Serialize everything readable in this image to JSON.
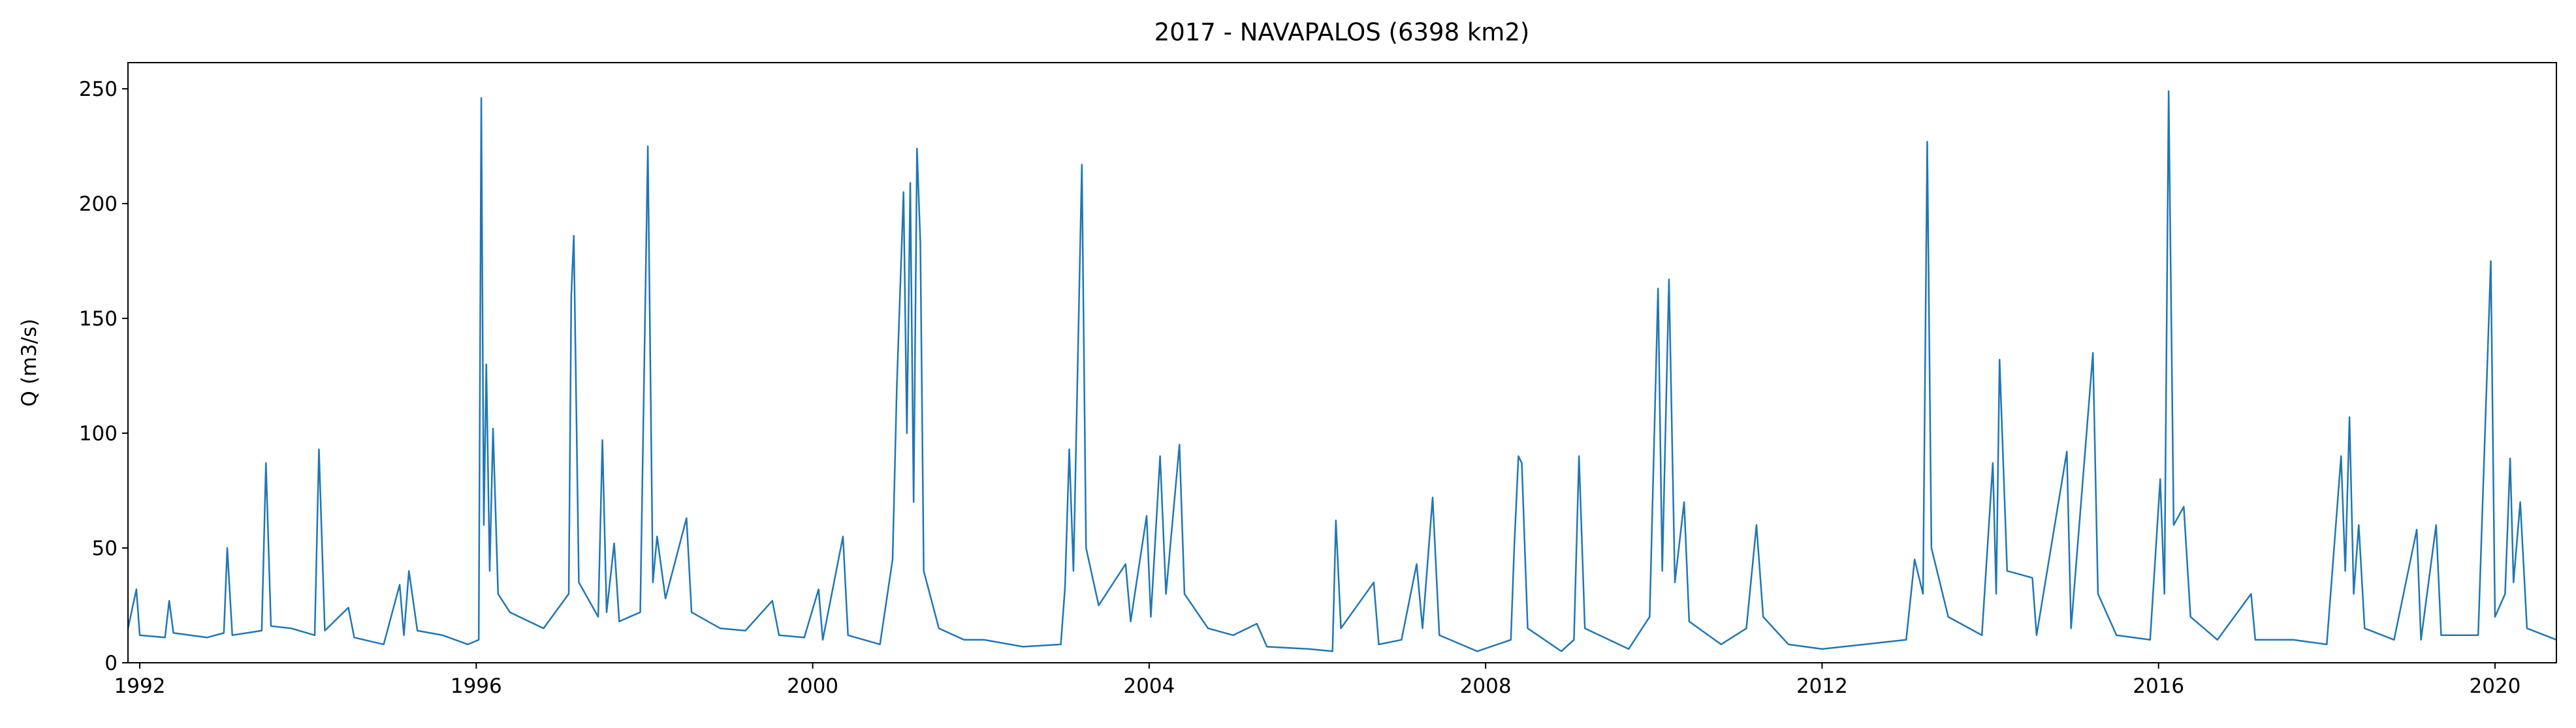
{
  "chart_data": {
    "type": "line",
    "title": "2017 - NAVAPALOS (6398 km2)",
    "ylabel": "Q (m3/s)",
    "x": [
      1991.86,
      1991.96,
      1992.0,
      1992.3,
      1992.35,
      1992.4,
      1992.8,
      1993.0,
      1993.04,
      1993.1,
      1993.45,
      1993.5,
      1993.56,
      1993.8,
      1994.08,
      1994.13,
      1994.2,
      1994.48,
      1994.55,
      1994.9,
      1995.09,
      1995.14,
      1995.2,
      1995.3,
      1995.6,
      1995.9,
      1996.03,
      1996.06,
      1996.09,
      1996.12,
      1996.16,
      1996.2,
      1996.26,
      1996.4,
      1996.8,
      1997.1,
      1997.13,
      1997.16,
      1997.22,
      1997.45,
      1997.5,
      1997.55,
      1997.64,
      1997.7,
      1997.95,
      1998.04,
      1998.1,
      1998.15,
      1998.25,
      1998.5,
      1998.56,
      1998.9,
      1999.2,
      1999.52,
      1999.6,
      1999.9,
      2000.07,
      2000.12,
      2000.36,
      2000.42,
      2000.8,
      2000.95,
      2001.0,
      2001.08,
      2001.12,
      2001.16,
      2001.2,
      2001.24,
      2001.28,
      2001.32,
      2001.5,
      2001.8,
      2002.04,
      2002.5,
      2002.95,
      2003.0,
      2003.05,
      2003.1,
      2003.2,
      2003.25,
      2003.4,
      2003.72,
      2003.78,
      2003.97,
      2004.02,
      2004.13,
      2004.2,
      2004.36,
      2004.42,
      2004.7,
      2005.0,
      2005.28,
      2005.4,
      2005.9,
      2006.18,
      2006.22,
      2006.28,
      2006.67,
      2006.73,
      2007.0,
      2007.18,
      2007.25,
      2007.37,
      2007.45,
      2007.9,
      2008.3,
      2008.34,
      2008.39,
      2008.43,
      2008.5,
      2008.9,
      2009.05,
      2009.11,
      2009.18,
      2009.7,
      2009.95,
      2010.05,
      2010.1,
      2010.18,
      2010.25,
      2010.36,
      2010.42,
      2010.8,
      2011.1,
      2011.22,
      2011.3,
      2011.6,
      2012.0,
      2012.5,
      2013.0,
      2013.1,
      2013.2,
      2013.25,
      2013.3,
      2013.5,
      2013.9,
      2014.03,
      2014.07,
      2014.11,
      2014.2,
      2014.5,
      2014.55,
      2014.91,
      2014.96,
      2015.22,
      2015.28,
      2015.5,
      2015.9,
      2016.02,
      2016.07,
      2016.12,
      2016.18,
      2016.3,
      2016.38,
      2016.7,
      2017.1,
      2017.15,
      2017.6,
      2018.0,
      2018.17,
      2018.22,
      2018.27,
      2018.32,
      2018.38,
      2018.45,
      2018.8,
      2019.07,
      2019.12,
      2019.3,
      2019.36,
      2019.8,
      2019.95,
      2020.0,
      2020.12,
      2020.18,
      2020.22,
      2020.3,
      2020.38,
      2020.73
    ],
    "series": [
      {
        "name": "Q",
        "color": "#1f77b4",
        "values": [
          15,
          32,
          12,
          11,
          27,
          13,
          11,
          13,
          50,
          12,
          14,
          87,
          16,
          15,
          12,
          93,
          14,
          24,
          11,
          8,
          34,
          12,
          40,
          14,
          12,
          8,
          10,
          246,
          60,
          130,
          40,
          102,
          30,
          22,
          15,
          30,
          160,
          186,
          35,
          20,
          97,
          22,
          52,
          18,
          22,
          225,
          35,
          55,
          28,
          63,
          22,
          15,
          14,
          27,
          12,
          11,
          32,
          10,
          55,
          12,
          8,
          45,
          120,
          205,
          100,
          209,
          70,
          224,
          183,
          40,
          15,
          10,
          10,
          7,
          8,
          33,
          93,
          40,
          217,
          50,
          25,
          43,
          18,
          64,
          20,
          90,
          30,
          95,
          30,
          15,
          12,
          17,
          7,
          6,
          5,
          62,
          15,
          35,
          8,
          10,
          43,
          15,
          72,
          12,
          5,
          10,
          50,
          90,
          87,
          15,
          5,
          10,
          90,
          15,
          6,
          20,
          163,
          40,
          167,
          35,
          70,
          18,
          8,
          15,
          60,
          20,
          8,
          6,
          8,
          10,
          45,
          30,
          227,
          50,
          20,
          12,
          87,
          30,
          132,
          40,
          37,
          12,
          92,
          15,
          135,
          30,
          12,
          10,
          80,
          30,
          249,
          60,
          68,
          20,
          10,
          30,
          10,
          10,
          8,
          90,
          40,
          107,
          30,
          60,
          15,
          10,
          58,
          10,
          60,
          12,
          12,
          175,
          20,
          30,
          89,
          35,
          70,
          15,
          10
        ]
      }
    ],
    "xlim": [
      1991.86,
      2020.73
    ],
    "xticks": [
      1992,
      1996,
      2000,
      2004,
      2008,
      2012,
      2016,
      2020
    ],
    "ylim": [
      0,
      261.4
    ],
    "yticks": [
      0,
      50,
      100,
      150,
      200,
      250
    ]
  }
}
